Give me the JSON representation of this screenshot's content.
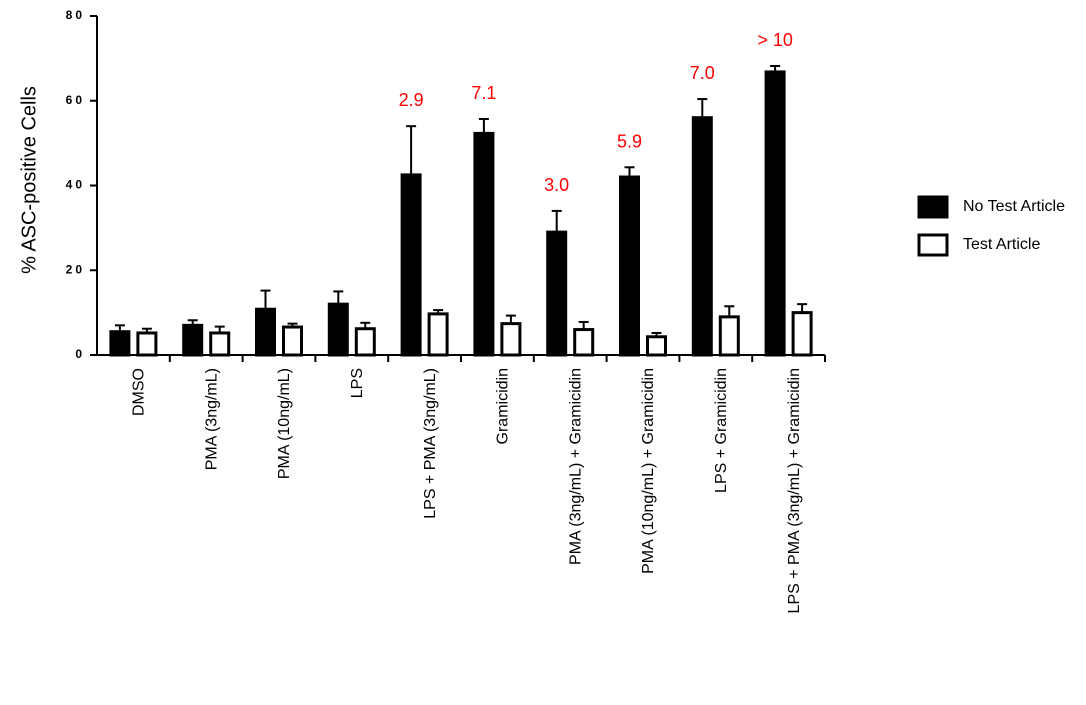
{
  "chart_data": {
    "type": "bar",
    "y_label": "% ASC-positive Cells",
    "categories": [
      "DMSO",
      "PMA (3ng/mL)",
      "PMA (10ng/mL)",
      "LPS",
      "LPS + PMA (3ng/mL)",
      "Gramicidin",
      "PMA (3ng/mL) + Gramicidin",
      "PMA (10ng/mL) + Gramicidin",
      "LPS + Gramicidin",
      "LPS + PMA (3ng/mL) + Gramicidin"
    ],
    "series": [
      {
        "name": "No Test Article",
        "color": "#000000",
        "values": [
          5.5,
          7.0,
          10.8,
          12.0,
          42.5,
          52.3,
          29.0,
          42.0,
          56.0,
          66.8
        ],
        "errors": [
          1.5,
          1.2,
          4.4,
          3.0,
          11.5,
          3.4,
          5.0,
          2.3,
          4.4,
          1.4
        ]
      },
      {
        "name": "Test Article",
        "color": "#ffffff",
        "values": [
          5.2,
          5.2,
          6.6,
          6.2,
          9.7,
          7.4,
          6.0,
          4.3,
          9.0,
          10.0
        ],
        "errors": [
          1.0,
          1.5,
          0.8,
          1.4,
          0.9,
          1.9,
          1.8,
          0.9,
          2.5,
          2.0
        ]
      }
    ],
    "annotations": [
      null,
      null,
      null,
      null,
      "2.9",
      "7.1",
      "3.0",
      "5.9",
      "7.0",
      "> 10"
    ],
    "annotation_color": "#ff0000",
    "ylim": [
      0,
      80
    ],
    "yticks": [
      0,
      20,
      40,
      60,
      80
    ],
    "legend": "right"
  }
}
